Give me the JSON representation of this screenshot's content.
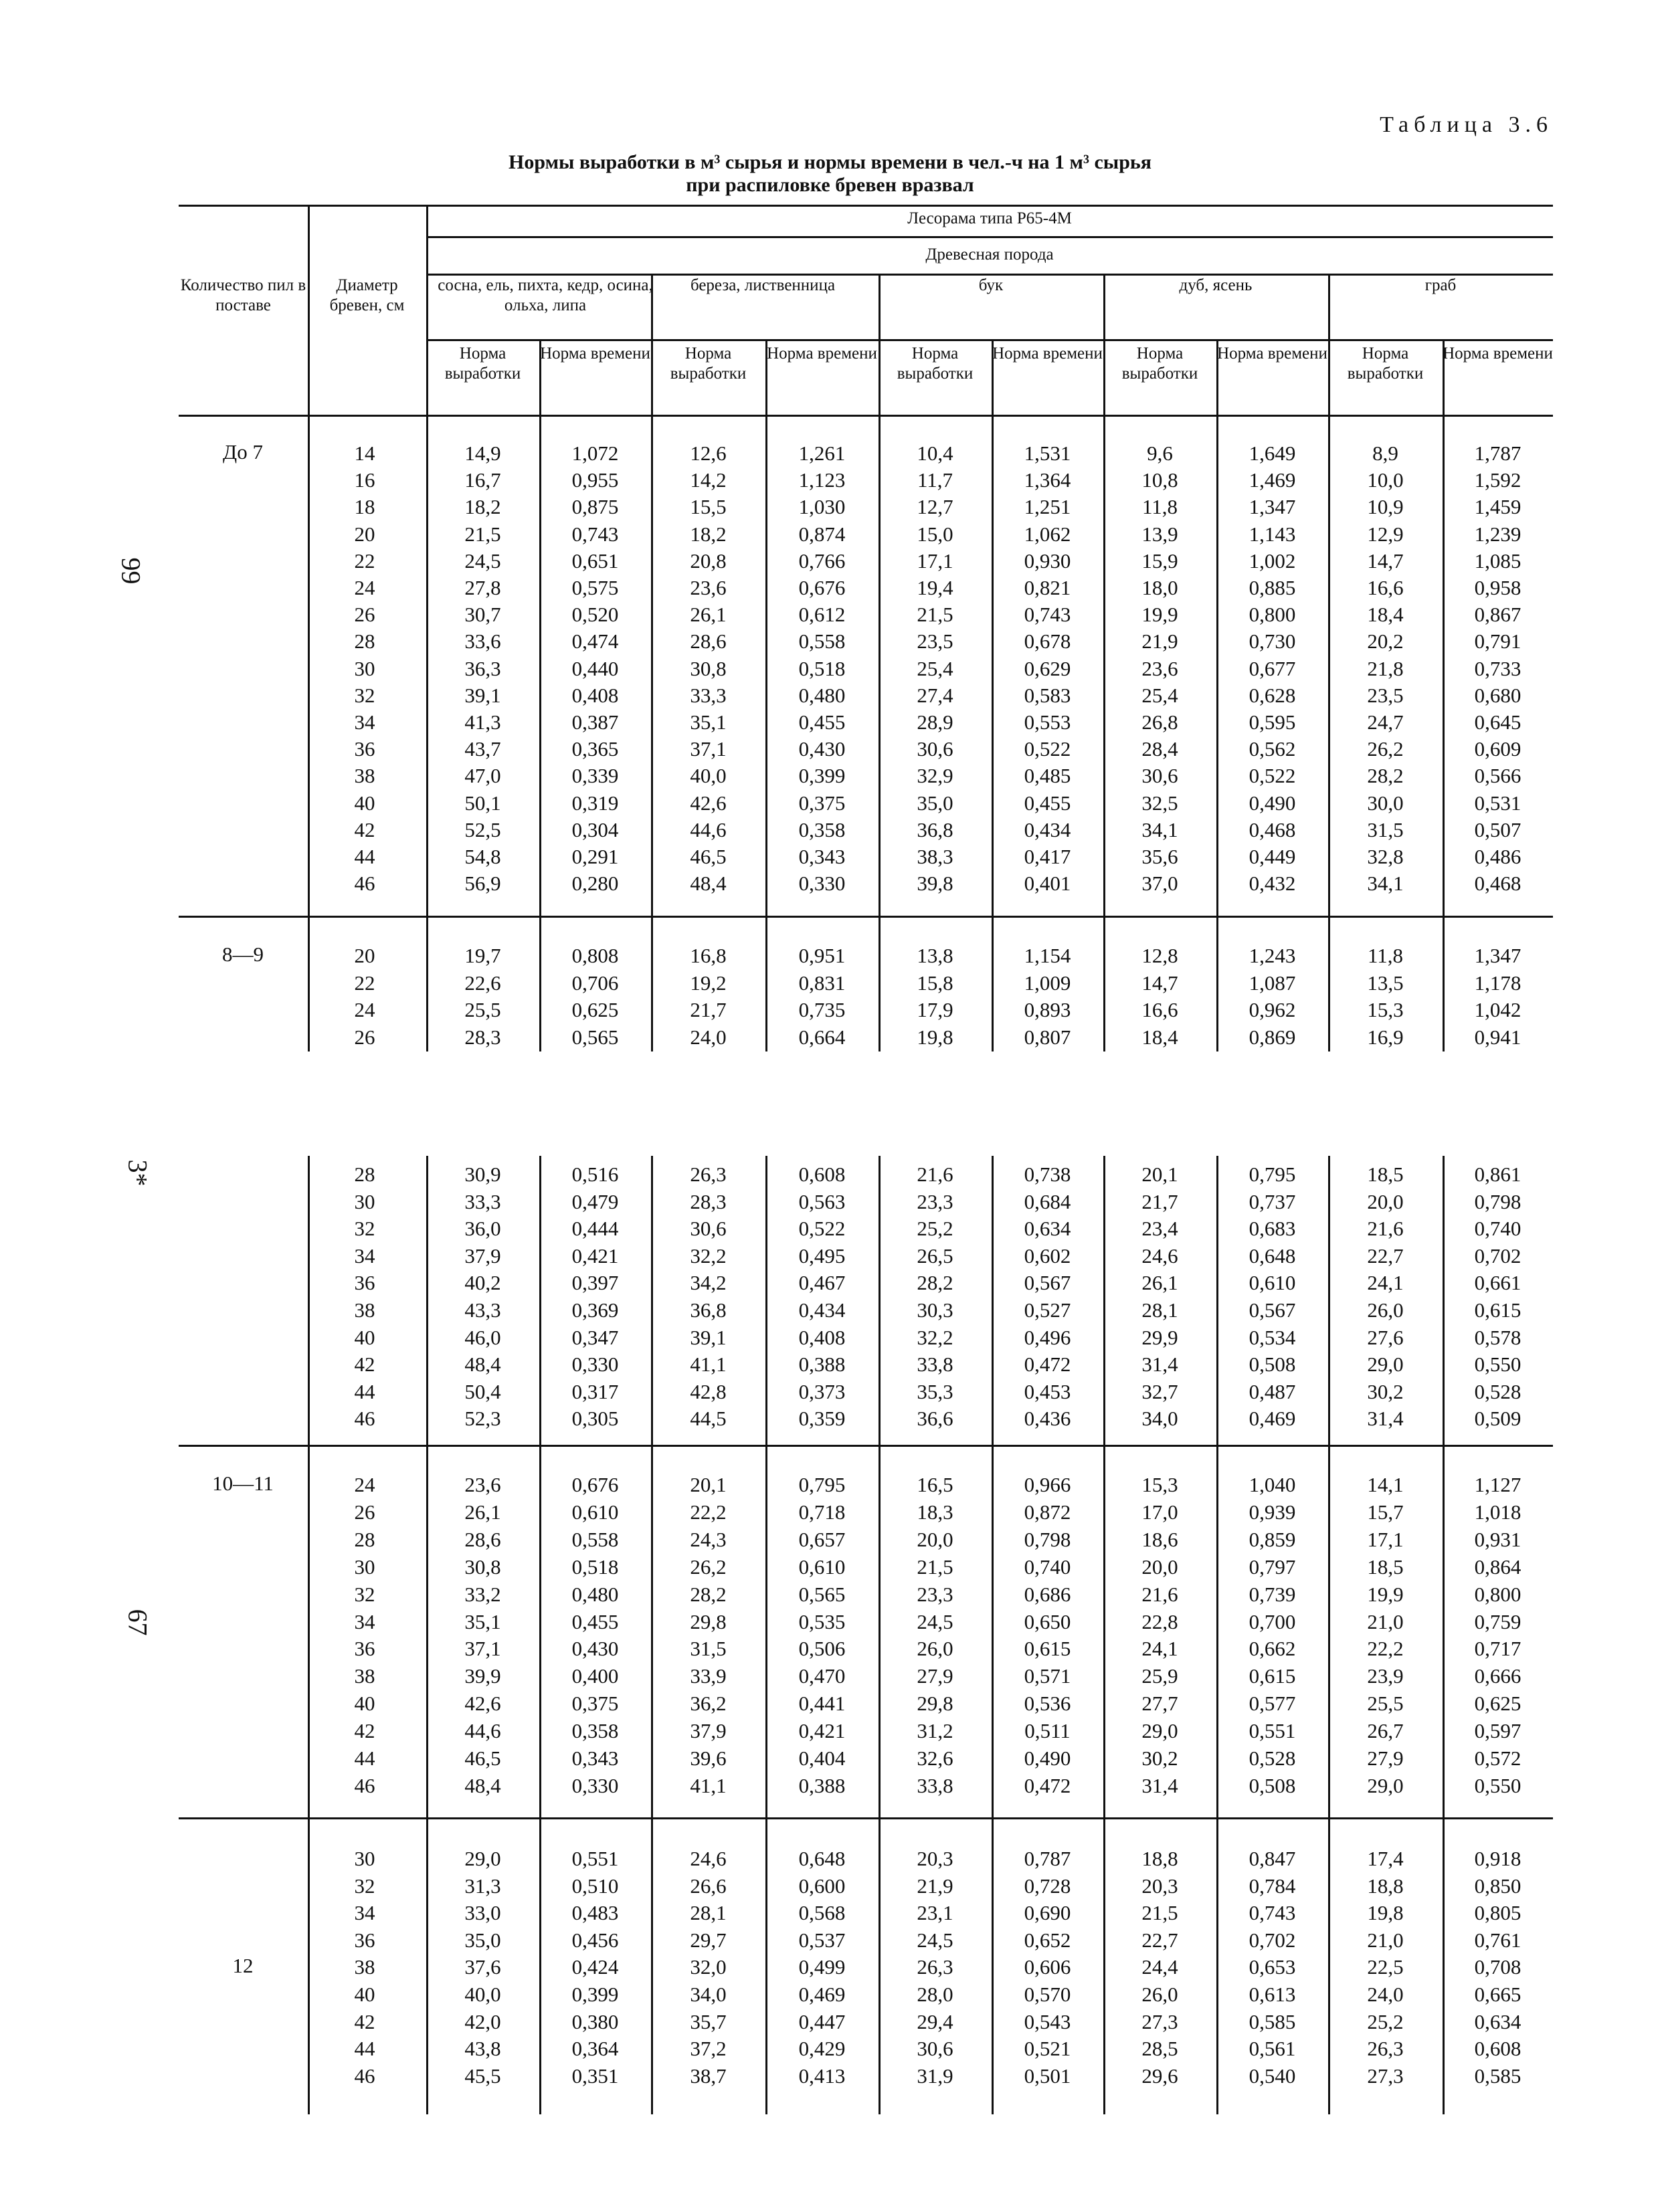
{
  "table_number": "Таблица 3.6",
  "title_line1": "Нормы выработки в м³ сырья и нормы времени в чел.-ч на 1 м³ сырья",
  "title_line2": "при распиловке бревен вразвал",
  "page_numbers": {
    "left_top": "99",
    "marker": "3*",
    "left_bottom": "67"
  },
  "header": {
    "col_saws": "Количество пил в поставе",
    "col_diameter": "Диаметр бревен, см",
    "machine": "Лесорама типа Р65-4М",
    "wood_type": "Древесная порода",
    "species": [
      "сосна, ель, пихта, кедр, осина, ольха, липа",
      "береза, лиственница",
      "бук",
      "дуб, ясень",
      "граб"
    ],
    "norm_output": "Норма выработки",
    "norm_time": "Норма времени"
  },
  "blocks": [
    {
      "label": "До 7",
      "rows": [
        [
          "14",
          "14,9",
          "1,072",
          "12,6",
          "1,261",
          "10,4",
          "1,531",
          "9,6",
          "1,649",
          "8,9",
          "1,787"
        ],
        [
          "16",
          "16,7",
          "0,955",
          "14,2",
          "1,123",
          "11,7",
          "1,364",
          "10,8",
          "1,469",
          "10,0",
          "1,592"
        ],
        [
          "18",
          "18,2",
          "0,875",
          "15,5",
          "1,030",
          "12,7",
          "1,251",
          "11,8",
          "1,347",
          "10,9",
          "1,459"
        ],
        [
          "20",
          "21,5",
          "0,743",
          "18,2",
          "0,874",
          "15,0",
          "1,062",
          "13,9",
          "1,143",
          "12,9",
          "1,239"
        ],
        [
          "22",
          "24,5",
          "0,651",
          "20,8",
          "0,766",
          "17,1",
          "0,930",
          "15,9",
          "1,002",
          "14,7",
          "1,085"
        ],
        [
          "24",
          "27,8",
          "0,575",
          "23,6",
          "0,676",
          "19,4",
          "0,821",
          "18,0",
          "0,885",
          "16,6",
          "0,958"
        ],
        [
          "26",
          "30,7",
          "0,520",
          "26,1",
          "0,612",
          "21,5",
          "0,743",
          "19,9",
          "0,800",
          "18,4",
          "0,867"
        ],
        [
          "28",
          "33,6",
          "0,474",
          "28,6",
          "0,558",
          "23,5",
          "0,678",
          "21,9",
          "0,730",
          "20,2",
          "0,791"
        ],
        [
          "30",
          "36,3",
          "0,440",
          "30,8",
          "0,518",
          "25,4",
          "0,629",
          "23,6",
          "0,677",
          "21,8",
          "0,733"
        ],
        [
          "32",
          "39,1",
          "0,408",
          "33,3",
          "0,480",
          "27,4",
          "0,583",
          "25,4",
          "0,628",
          "23,5",
          "0,680"
        ],
        [
          "34",
          "41,3",
          "0,387",
          "35,1",
          "0,455",
          "28,9",
          "0,553",
          "26,8",
          "0,595",
          "24,7",
          "0,645"
        ],
        [
          "36",
          "43,7",
          "0,365",
          "37,1",
          "0,430",
          "30,6",
          "0,522",
          "28,4",
          "0,562",
          "26,2",
          "0,609"
        ],
        [
          "38",
          "47,0",
          "0,339",
          "40,0",
          "0,399",
          "32,9",
          "0,485",
          "30,6",
          "0,522",
          "28,2",
          "0,566"
        ],
        [
          "40",
          "50,1",
          "0,319",
          "42,6",
          "0,375",
          "35,0",
          "0,455",
          "32,5",
          "0,490",
          "30,0",
          "0,531"
        ],
        [
          "42",
          "52,5",
          "0,304",
          "44,6",
          "0,358",
          "36,8",
          "0,434",
          "34,1",
          "0,468",
          "31,5",
          "0,507"
        ],
        [
          "44",
          "54,8",
          "0,291",
          "46,5",
          "0,343",
          "38,3",
          "0,417",
          "35,6",
          "0,449",
          "32,8",
          "0,486"
        ],
        [
          "46",
          "56,9",
          "0,280",
          "48,4",
          "0,330",
          "39,8",
          "0,401",
          "37,0",
          "0,432",
          "34,1",
          "0,468"
        ]
      ]
    },
    {
      "label": "8—9",
      "rows": [
        [
          "20",
          "19,7",
          "0,808",
          "16,8",
          "0,951",
          "13,8",
          "1,154",
          "12,8",
          "1,243",
          "11,8",
          "1,347"
        ],
        [
          "22",
          "22,6",
          "0,706",
          "19,2",
          "0,831",
          "15,8",
          "1,009",
          "14,7",
          "1,087",
          "13,5",
          "1,178"
        ],
        [
          "24",
          "25,5",
          "0,625",
          "21,7",
          "0,735",
          "17,9",
          "0,893",
          "16,6",
          "0,962",
          "15,3",
          "1,042"
        ],
        [
          "26",
          "28,3",
          "0,565",
          "24,0",
          "0,664",
          "19,8",
          "0,807",
          "18,4",
          "0,869",
          "16,9",
          "0,941"
        ]
      ]
    },
    {
      "label": "",
      "rows": [
        [
          "28",
          "30,9",
          "0,516",
          "26,3",
          "0,608",
          "21,6",
          "0,738",
          "20,1",
          "0,795",
          "18,5",
          "0,861"
        ],
        [
          "30",
          "33,3",
          "0,479",
          "28,3",
          "0,563",
          "23,3",
          "0,684",
          "21,7",
          "0,737",
          "20,0",
          "0,798"
        ],
        [
          "32",
          "36,0",
          "0,444",
          "30,6",
          "0,522",
          "25,2",
          "0,634",
          "23,4",
          "0,683",
          "21,6",
          "0,740"
        ],
        [
          "34",
          "37,9",
          "0,421",
          "32,2",
          "0,495",
          "26,5",
          "0,602",
          "24,6",
          "0,648",
          "22,7",
          "0,702"
        ],
        [
          "36",
          "40,2",
          "0,397",
          "34,2",
          "0,467",
          "28,2",
          "0,567",
          "26,1",
          "0,610",
          "24,1",
          "0,661"
        ],
        [
          "38",
          "43,3",
          "0,369",
          "36,8",
          "0,434",
          "30,3",
          "0,527",
          "28,1",
          "0,567",
          "26,0",
          "0,615"
        ],
        [
          "40",
          "46,0",
          "0,347",
          "39,1",
          "0,408",
          "32,2",
          "0,496",
          "29,9",
          "0,534",
          "27,6",
          "0,578"
        ],
        [
          "42",
          "48,4",
          "0,330",
          "41,1",
          "0,388",
          "33,8",
          "0,472",
          "31,4",
          "0,508",
          "29,0",
          "0,550"
        ],
        [
          "44",
          "50,4",
          "0,317",
          "42,8",
          "0,373",
          "35,3",
          "0,453",
          "32,7",
          "0,487",
          "30,2",
          "0,528"
        ],
        [
          "46",
          "52,3",
          "0,305",
          "44,5",
          "0,359",
          "36,6",
          "0,436",
          "34,0",
          "0,469",
          "31,4",
          "0,509"
        ]
      ]
    },
    {
      "label": "10—11",
      "rows": [
        [
          "24",
          "23,6",
          "0,676",
          "20,1",
          "0,795",
          "16,5",
          "0,966",
          "15,3",
          "1,040",
          "14,1",
          "1,127"
        ],
        [
          "26",
          "26,1",
          "0,610",
          "22,2",
          "0,718",
          "18,3",
          "0,872",
          "17,0",
          "0,939",
          "15,7",
          "1,018"
        ],
        [
          "28",
          "28,6",
          "0,558",
          "24,3",
          "0,657",
          "20,0",
          "0,798",
          "18,6",
          "0,859",
          "17,1",
          "0,931"
        ],
        [
          "30",
          "30,8",
          "0,518",
          "26,2",
          "0,610",
          "21,5",
          "0,740",
          "20,0",
          "0,797",
          "18,5",
          "0,864"
        ],
        [
          "32",
          "33,2",
          "0,480",
          "28,2",
          "0,565",
          "23,3",
          "0,686",
          "21,6",
          "0,739",
          "19,9",
          "0,800"
        ],
        [
          "34",
          "35,1",
          "0,455",
          "29,8",
          "0,535",
          "24,5",
          "0,650",
          "22,8",
          "0,700",
          "21,0",
          "0,759"
        ],
        [
          "36",
          "37,1",
          "0,430",
          "31,5",
          "0,506",
          "26,0",
          "0,615",
          "24,1",
          "0,662",
          "22,2",
          "0,717"
        ],
        [
          "38",
          "39,9",
          "0,400",
          "33,9",
          "0,470",
          "27,9",
          "0,571",
          "25,9",
          "0,615",
          "23,9",
          "0,666"
        ],
        [
          "40",
          "42,6",
          "0,375",
          "36,2",
          "0,441",
          "29,8",
          "0,536",
          "27,7",
          "0,577",
          "25,5",
          "0,625"
        ],
        [
          "42",
          "44,6",
          "0,358",
          "37,9",
          "0,421",
          "31,2",
          "0,511",
          "29,0",
          "0,551",
          "26,7",
          "0,597"
        ],
        [
          "44",
          "46,5",
          "0,343",
          "39,6",
          "0,404",
          "32,6",
          "0,490",
          "30,2",
          "0,528",
          "27,9",
          "0,572"
        ],
        [
          "46",
          "48,4",
          "0,330",
          "41,1",
          "0,388",
          "33,8",
          "0,472",
          "31,4",
          "0,508",
          "29,0",
          "0,550"
        ]
      ]
    },
    {
      "label": "12",
      "rows": [
        [
          "30",
          "29,0",
          "0,551",
          "24,6",
          "0,648",
          "20,3",
          "0,787",
          "18,8",
          "0,847",
          "17,4",
          "0,918"
        ],
        [
          "32",
          "31,3",
          "0,510",
          "26,6",
          "0,600",
          "21,9",
          "0,728",
          "20,3",
          "0,784",
          "18,8",
          "0,850"
        ],
        [
          "34",
          "33,0",
          "0,483",
          "28,1",
          "0,568",
          "23,1",
          "0,690",
          "21,5",
          "0,743",
          "19,8",
          "0,805"
        ],
        [
          "36",
          "35,0",
          "0,456",
          "29,7",
          "0,537",
          "24,5",
          "0,652",
          "22,7",
          "0,702",
          "21,0",
          "0,761"
        ],
        [
          "38",
          "37,6",
          "0,424",
          "32,0",
          "0,499",
          "26,3",
          "0,606",
          "24,4",
          "0,653",
          "22,5",
          "0,708"
        ],
        [
          "40",
          "40,0",
          "0,399",
          "34,0",
          "0,469",
          "28,0",
          "0,570",
          "26,0",
          "0,613",
          "24,0",
          "0,665"
        ],
        [
          "42",
          "42,0",
          "0,380",
          "35,7",
          "0,447",
          "29,4",
          "0,543",
          "27,3",
          "0,585",
          "25,2",
          "0,634"
        ],
        [
          "44",
          "43,8",
          "0,364",
          "37,2",
          "0,429",
          "30,6",
          "0,521",
          "28,5",
          "0,561",
          "26,3",
          "0,608"
        ],
        [
          "46",
          "45,5",
          "0,351",
          "38,7",
          "0,413",
          "31,9",
          "0,501",
          "29,6",
          "0,540",
          "27,3",
          "0,585"
        ]
      ]
    }
  ]
}
